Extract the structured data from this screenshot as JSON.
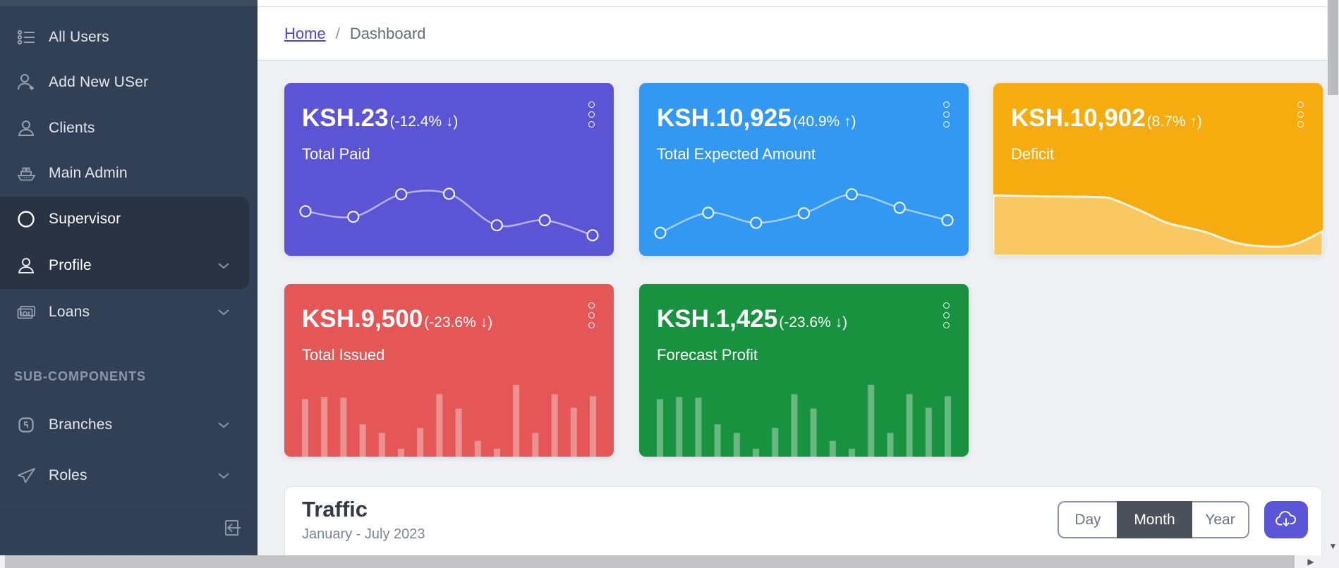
{
  "colors": {
    "sidebar_bg": "#324056",
    "sidebar_active_bg": "#2a3343",
    "primary": "#5b55d6",
    "info": "#3398f2",
    "warning": "#f6ab0e",
    "danger": "#e55656",
    "success": "#18923f",
    "accent_link": "#4f46d6"
  },
  "sidebar": {
    "items": [
      {
        "label": "All Users",
        "icon": "users-list-icon"
      },
      {
        "label": "Add New USer",
        "icon": "user-add-icon"
      },
      {
        "label": "Clients",
        "icon": "client-icon"
      },
      {
        "label": "Main Admin",
        "icon": "ship-icon"
      },
      {
        "label": "Supervisor",
        "icon": "circle-icon",
        "active": true
      },
      {
        "label": "Profile",
        "icon": "profile-icon",
        "chevron": true,
        "active": true
      },
      {
        "label": "Loans",
        "icon": "banknote-icon",
        "chevron": true
      }
    ],
    "section_label": "SUB-COMPONENTS",
    "sub_items": [
      {
        "label": "Branches",
        "icon": "branch-badge-icon",
        "chevron": true
      },
      {
        "label": "Roles",
        "icon": "send-icon",
        "chevron": true
      }
    ]
  },
  "breadcrumb": {
    "home": "Home",
    "separator": "/",
    "current": "Dashboard"
  },
  "stat_cards": [
    {
      "value": "KSH.23",
      "delta": "(-12.4% ↓)",
      "label": "Total Paid",
      "color": "#5b55d6",
      "chart": {
        "type": "line",
        "values": [
          58,
          47,
          92,
          93,
          30,
          40,
          10
        ]
      }
    },
    {
      "value": "KSH.10,925",
      "delta": "(40.9% ↑)",
      "label": "Total Expected Amount",
      "color": "#3398f2",
      "chart": {
        "type": "line",
        "values": [
          15,
          55,
          35,
          54,
          92,
          65,
          40
        ]
      }
    },
    {
      "value": "KSH.10,902",
      "delta": "(8.7% ↑)",
      "label": "Deficit",
      "color": "#f6ab0e",
      "chart": {
        "type": "area",
        "x": [
          0,
          0.14,
          0.32,
          0.37,
          0.46,
          0.53,
          0.64,
          0.74,
          0.85,
          0.92,
          1
        ],
        "y": [
          0.65,
          0.655,
          0.66,
          0.677,
          0.75,
          0.81,
          0.86,
          0.926,
          0.947,
          0.93,
          0.857
        ]
      }
    },
    {
      "value": "KSH.9,500",
      "delta": "(-23.6% ↓)",
      "label": "Total Issued",
      "color": "#e55656",
      "chart": {
        "type": "bars",
        "values": [
          80,
          83,
          82,
          45,
          33,
          11,
          40,
          87,
          67,
          22,
          11,
          100,
          33,
          87,
          68,
          84
        ]
      }
    },
    {
      "value": "KSH.1,425",
      "delta": "(-23.6% ↓)",
      "label": "Forecast Profit",
      "color": "#18923f",
      "chart": {
        "type": "bars",
        "values": [
          80,
          83,
          82,
          45,
          33,
          11,
          40,
          87,
          67,
          22,
          11,
          100,
          33,
          87,
          68,
          84
        ]
      }
    }
  ],
  "traffic": {
    "title": "Traffic",
    "subtitle": "January - July 2023",
    "ranges": [
      "Day",
      "Month",
      "Year"
    ],
    "active_range": "Month"
  }
}
